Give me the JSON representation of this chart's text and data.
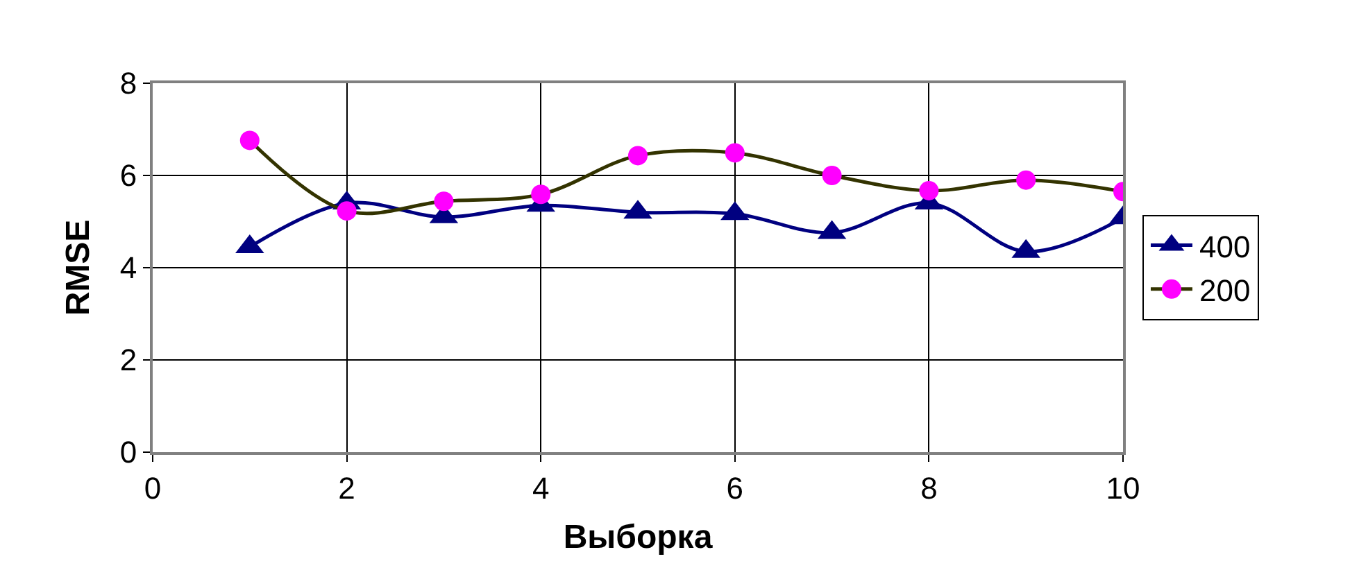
{
  "chart_data": {
    "type": "line",
    "xlabel": "Выборка",
    "ylabel": "RMSE",
    "x": [
      1,
      2,
      3,
      4,
      5,
      6,
      7,
      8,
      9,
      10
    ],
    "series": [
      {
        "name": "400",
        "color": "#000080",
        "marker": "triangle",
        "values": [
          4.45,
          5.4,
          5.1,
          5.35,
          5.2,
          5.17,
          4.76,
          5.4,
          4.35,
          5.08
        ]
      },
      {
        "name": "200",
        "color": "#333300",
        "colors": [
          "#ff00ff",
          "#ff00ff",
          "#ff00ff",
          "#ff00ff",
          "#ff00ff",
          "#ff00ff",
          "#ff00ff",
          "#ff00ff",
          "#ff00ff",
          "#ff00ff"
        ],
        "marker": "circle",
        "values": [
          6.76,
          5.23,
          5.44,
          5.59,
          6.43,
          6.49,
          6.0,
          5.67,
          5.9,
          5.65
        ]
      }
    ],
    "xlim": [
      0,
      10
    ],
    "xticks": [
      0,
      2,
      4,
      6,
      8,
      10
    ],
    "ylim": [
      0,
      8
    ],
    "yticks": [
      0,
      2,
      4,
      6,
      8
    ],
    "grid": true,
    "legend": "right",
    "line_style": "solid"
  }
}
